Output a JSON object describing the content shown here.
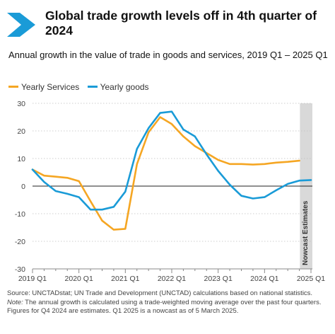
{
  "header": {
    "title": "Global trade growth levels off in 4th quarter of 2024",
    "subtitle": "Annual growth in the value of trade in goods and services, 2019 Q1 – 2025 Q1"
  },
  "colors": {
    "services": "#f5a623",
    "goods": "#1a9bd7",
    "shade": "#d9d9d9",
    "logo": "#1a9bd7"
  },
  "legend": [
    {
      "label": "Yearly Services",
      "color": "#f5a623"
    },
    {
      "label": "Yearly goods",
      "color": "#1a9bd7"
    }
  ],
  "chart_data": {
    "type": "line",
    "x": [
      "2019 Q1",
      "2019 Q2",
      "2019 Q3",
      "2019 Q4",
      "2020 Q1",
      "2020 Q2",
      "2020 Q3",
      "2020 Q4",
      "2021 Q1",
      "2021 Q2",
      "2021 Q3",
      "2021 Q4",
      "2022 Q1",
      "2022 Q2",
      "2022 Q3",
      "2022 Q4",
      "2023 Q1",
      "2023 Q2",
      "2023 Q3",
      "2023 Q4",
      "2024 Q1",
      "2024 Q2",
      "2024 Q3",
      "2024 Q4",
      "2025 Q1"
    ],
    "tick_labels": [
      "2019 Q1",
      "2020 Q1",
      "2021 Q1",
      "2022 Q1",
      "2023 Q1",
      "2024 Q1",
      "2025 Q1"
    ],
    "series": [
      {
        "name": "Yearly Services",
        "values": [
          6,
          3.8,
          3.4,
          3.0,
          1.8,
          -5.5,
          -12.5,
          -15.8,
          -15.5,
          8.0,
          19.5,
          25.0,
          22.5,
          18.0,
          14.5,
          12.0,
          9.5,
          8.0,
          8.0,
          7.8,
          8.0,
          8.5,
          8.8,
          9.2,
          null
        ]
      },
      {
        "name": "Yearly goods",
        "values": [
          6,
          1.5,
          -1.8,
          -2.8,
          -4.0,
          -8.5,
          -8.5,
          -7.5,
          -2.0,
          13.5,
          21.0,
          26.5,
          27.0,
          20.5,
          18.0,
          11.5,
          5.5,
          0.5,
          -3.5,
          -4.5,
          -4.0,
          -1.5,
          0.8,
          2.0,
          2.2
        ]
      }
    ],
    "ylim": [
      -30,
      30
    ],
    "yticks": [
      -30,
      -20,
      -10,
      0,
      10,
      20,
      30
    ],
    "grid": true,
    "shaded_label": "Nowcast Estimates",
    "shaded_from_index": 24
  },
  "footer": {
    "source": "Source: UNCTADstat; UN Trade and Development (UNCTAD) calculations based on national statistics.",
    "note_label": "Note:",
    "note": " The annual growth is calculated using a trade-weighted moving average over the past four quarters. Figures for Q4 2024 are estimates. Q1 2025 is a nowcast as of 5 March 2025."
  }
}
